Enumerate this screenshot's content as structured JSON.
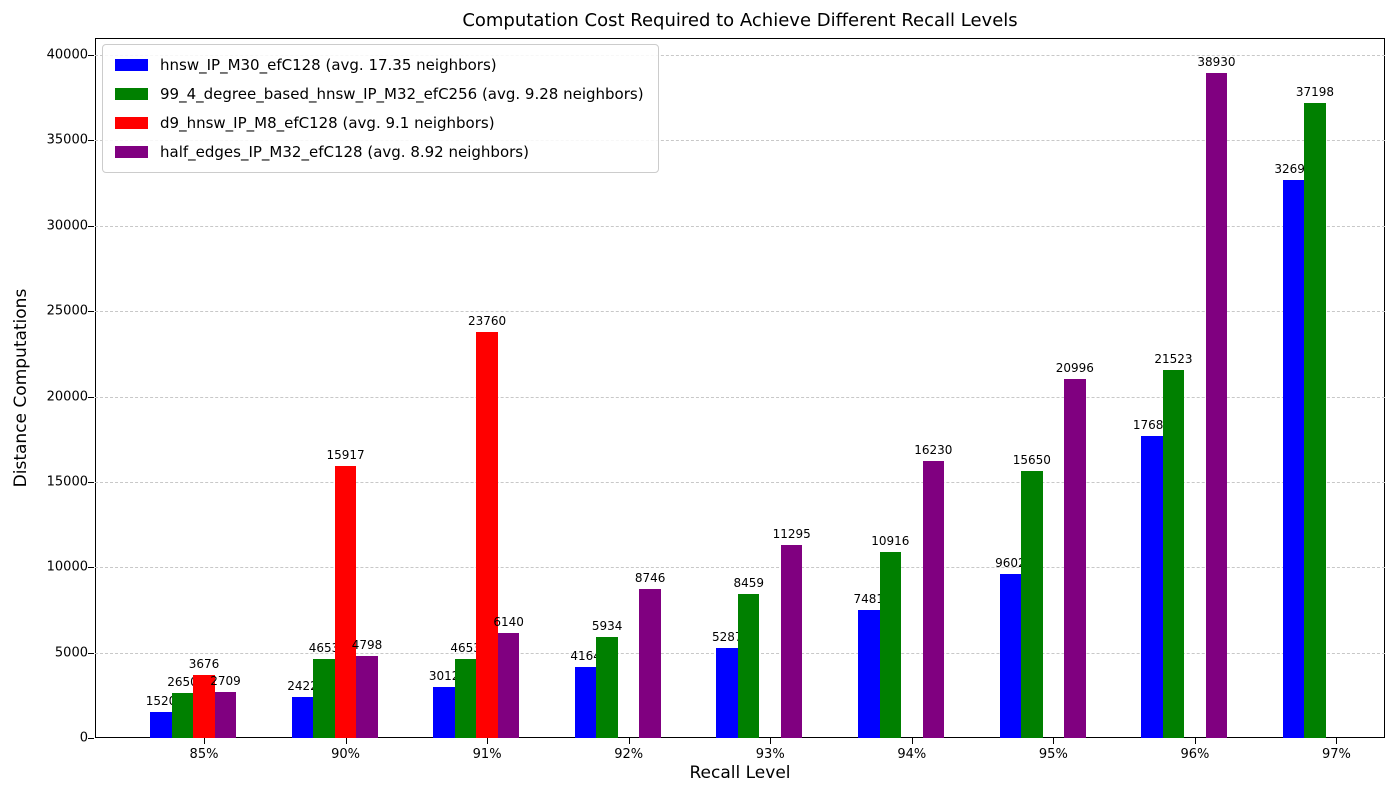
{
  "chart_data": {
    "type": "bar",
    "title": "Computation Cost Required to Achieve Different Recall Levels",
    "xlabel": "Recall Level",
    "ylabel": "Distance Computations",
    "categories": [
      "85%",
      "90%",
      "91%",
      "92%",
      "93%",
      "94%",
      "95%",
      "96%",
      "97%"
    ],
    "series": [
      {
        "name": "hnsw_IP_M30_efC128 (avg. 17.35 neighbors)",
        "color": "#0000ff",
        "values": [
          1520,
          2422,
          3012,
          4164,
          5287,
          7481,
          9602,
          17689,
          32692
        ]
      },
      {
        "name": "99_4_degree_based_hnsw_IP_M32_efC256 (avg. 9.28 neighbors)",
        "color": "#008000",
        "values": [
          2650,
          4653,
          4653,
          5934,
          8459,
          10916,
          15650,
          21523,
          37198
        ]
      },
      {
        "name": "d9_hnsw_IP_M8_efC128 (avg. 9.1 neighbors)",
        "color": "#ff0000",
        "values": [
          3676,
          15917,
          23760,
          null,
          null,
          null,
          null,
          null,
          null
        ]
      },
      {
        "name": "half_edges_IP_M32_efC128 (avg. 8.92 neighbors)",
        "color": "#800080",
        "values": [
          2709,
          4798,
          6140,
          8746,
          11295,
          16230,
          20996,
          38930,
          null
        ]
      }
    ],
    "ylim": [
      0,
      40000
    ],
    "yticks": [
      0,
      5000,
      10000,
      15000,
      20000,
      25000,
      30000,
      35000,
      40000
    ],
    "grid": "horizontal-dashed",
    "legend_position": "upper-left",
    "bar_value_labels": true
  }
}
